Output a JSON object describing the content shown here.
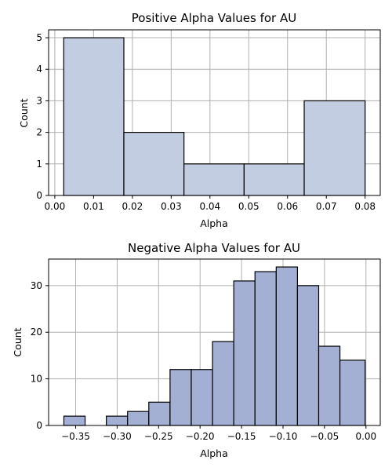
{
  "chart_data": [
    {
      "type": "bar",
      "title": "Positive Alpha Values for AU",
      "xlabel": "Alpha",
      "ylabel": "Count",
      "bins": [
        {
          "start": 0.0023,
          "end": 0.0178,
          "count": 5
        },
        {
          "start": 0.0178,
          "end": 0.0333,
          "count": 2
        },
        {
          "start": 0.0333,
          "end": 0.0488,
          "count": 1
        },
        {
          "start": 0.0488,
          "end": 0.0643,
          "count": 1
        },
        {
          "start": 0.0643,
          "end": 0.08,
          "count": 3
        }
      ],
      "xlim": [
        -0.0016,
        0.0839
      ],
      "ylim": [
        0,
        5.25
      ],
      "xticks": [
        0.0,
        0.01,
        0.02,
        0.03,
        0.04,
        0.05,
        0.06,
        0.07,
        0.08
      ],
      "xtick_labels": [
        "0.00",
        "0.01",
        "0.02",
        "0.03",
        "0.04",
        "0.05",
        "0.06",
        "0.07",
        "0.08"
      ],
      "yticks": [
        0,
        1,
        2,
        3,
        4,
        5
      ],
      "ytick_labels": [
        "0",
        "1",
        "2",
        "3",
        "4",
        "5"
      ],
      "grid": true,
      "bar_color": "#c3cde1"
    },
    {
      "type": "bar",
      "title": "Negative Alpha Values for AU",
      "xlabel": "Alpha",
      "ylabel": "Count",
      "bins": [
        {
          "start": -0.3642,
          "end": -0.3386,
          "count": 2
        },
        {
          "start": -0.3386,
          "end": -0.313,
          "count": 0
        },
        {
          "start": -0.313,
          "end": -0.2874,
          "count": 2
        },
        {
          "start": -0.2874,
          "end": -0.2618,
          "count": 3
        },
        {
          "start": -0.2618,
          "end": -0.2362,
          "count": 5
        },
        {
          "start": -0.2362,
          "end": -0.2106,
          "count": 12
        },
        {
          "start": -0.2106,
          "end": -0.185,
          "count": 12
        },
        {
          "start": -0.185,
          "end": -0.1594,
          "count": 18
        },
        {
          "start": -0.1594,
          "end": -0.1338,
          "count": 31
        },
        {
          "start": -0.1338,
          "end": -0.1082,
          "count": 33
        },
        {
          "start": -0.1082,
          "end": -0.0826,
          "count": 34
        },
        {
          "start": -0.0826,
          "end": -0.057,
          "count": 30
        },
        {
          "start": -0.057,
          "end": -0.0314,
          "count": 17
        },
        {
          "start": -0.0314,
          "end": -0.001,
          "count": 14
        }
      ],
      "xlim": [
        -0.3826,
        0.0172
      ],
      "ylim": [
        0,
        35.7
      ],
      "xticks": [
        -0.35,
        -0.3,
        -0.25,
        -0.2,
        -0.15,
        -0.1,
        -0.05,
        0.0
      ],
      "xtick_labels": [
        "−0.35",
        "−0.30",
        "−0.25",
        "−0.20",
        "−0.15",
        "−0.10",
        "−0.05",
        "0.00"
      ],
      "yticks": [
        0,
        10,
        20,
        30
      ],
      "ytick_labels": [
        "0",
        "10",
        "20",
        "30"
      ],
      "grid": true,
      "bar_color": "#a3b0d4"
    }
  ]
}
